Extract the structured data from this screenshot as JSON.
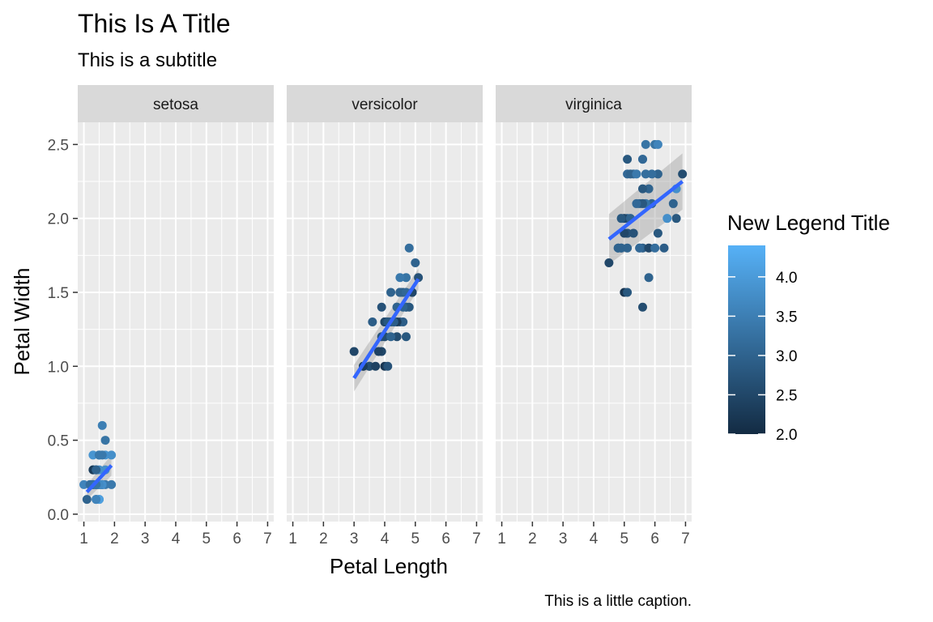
{
  "chart_data": {
    "type": "scatter",
    "title": "This Is A Title",
    "subtitle": "This is a subtitle",
    "caption": "This is a little caption.",
    "xlabel": "Petal Length",
    "ylabel": "Petal Width",
    "xlim": [
      0.8,
      7.2
    ],
    "ylim": [
      -0.05,
      2.65
    ],
    "x_ticks": [
      "1",
      "2",
      "3",
      "4",
      "5",
      "6",
      "7"
    ],
    "y_ticks": [
      "0.0",
      "0.5",
      "1.0",
      "1.5",
      "2.0",
      "2.5"
    ],
    "grid": true,
    "facet_by": "species",
    "legend": {
      "title": "New Legend Title",
      "placement": "right",
      "type": "colorbar",
      "min": 2.0,
      "max": 4.4,
      "ticks": [
        "2.0",
        "2.5",
        "3.0",
        "3.5",
        "4.0"
      ],
      "low_color": "#132B43",
      "high_color": "#56B1F7"
    },
    "smooth_line_color": "#3366FF",
    "smooth_band_color": "#999999",
    "facets": [
      {
        "name": "setosa",
        "fit": {
          "x": [
            1.1,
            1.9
          ],
          "y": [
            0.15,
            0.33
          ],
          "band": [
            0.05,
            0.07
          ]
        },
        "points": [
          {
            "x": 1.4,
            "y": 0.2,
            "c": 3.5
          },
          {
            "x": 1.4,
            "y": 0.2,
            "c": 3.0
          },
          {
            "x": 1.3,
            "y": 0.2,
            "c": 3.2
          },
          {
            "x": 1.5,
            "y": 0.2,
            "c": 3.1
          },
          {
            "x": 1.4,
            "y": 0.2,
            "c": 3.6
          },
          {
            "x": 1.7,
            "y": 0.4,
            "c": 3.9
          },
          {
            "x": 1.4,
            "y": 0.3,
            "c": 3.4
          },
          {
            "x": 1.5,
            "y": 0.2,
            "c": 3.4
          },
          {
            "x": 1.4,
            "y": 0.2,
            "c": 2.9
          },
          {
            "x": 1.5,
            "y": 0.1,
            "c": 3.1
          },
          {
            "x": 1.5,
            "y": 0.2,
            "c": 3.7
          },
          {
            "x": 1.6,
            "y": 0.2,
            "c": 3.4
          },
          {
            "x": 1.4,
            "y": 0.1,
            "c": 3.0
          },
          {
            "x": 1.1,
            "y": 0.1,
            "c": 3.0
          },
          {
            "x": 1.2,
            "y": 0.2,
            "c": 4.0
          },
          {
            "x": 1.5,
            "y": 0.4,
            "c": 4.4
          },
          {
            "x": 1.3,
            "y": 0.4,
            "c": 3.9
          },
          {
            "x": 1.4,
            "y": 0.3,
            "c": 3.5
          },
          {
            "x": 1.7,
            "y": 0.3,
            "c": 3.8
          },
          {
            "x": 1.5,
            "y": 0.3,
            "c": 3.8
          },
          {
            "x": 1.7,
            "y": 0.2,
            "c": 3.4
          },
          {
            "x": 1.5,
            "y": 0.4,
            "c": 3.7
          },
          {
            "x": 1.0,
            "y": 0.2,
            "c": 3.6
          },
          {
            "x": 1.7,
            "y": 0.5,
            "c": 3.3
          },
          {
            "x": 1.9,
            "y": 0.2,
            "c": 3.4
          },
          {
            "x": 1.6,
            "y": 0.2,
            "c": 3.0
          },
          {
            "x": 1.6,
            "y": 0.4,
            "c": 3.4
          },
          {
            "x": 1.5,
            "y": 0.2,
            "c": 3.5
          },
          {
            "x": 1.4,
            "y": 0.2,
            "c": 3.4
          },
          {
            "x": 1.6,
            "y": 0.2,
            "c": 3.2
          },
          {
            "x": 1.6,
            "y": 0.2,
            "c": 3.1
          },
          {
            "x": 1.5,
            "y": 0.4,
            "c": 3.4
          },
          {
            "x": 1.5,
            "y": 0.1,
            "c": 4.1
          },
          {
            "x": 1.4,
            "y": 0.2,
            "c": 4.2
          },
          {
            "x": 1.5,
            "y": 0.2,
            "c": 3.1
          },
          {
            "x": 1.2,
            "y": 0.2,
            "c": 3.2
          },
          {
            "x": 1.3,
            "y": 0.2,
            "c": 3.5
          },
          {
            "x": 1.4,
            "y": 0.1,
            "c": 3.6
          },
          {
            "x": 1.3,
            "y": 0.2,
            "c": 3.0
          },
          {
            "x": 1.5,
            "y": 0.2,
            "c": 3.4
          },
          {
            "x": 1.3,
            "y": 0.3,
            "c": 3.5
          },
          {
            "x": 1.3,
            "y": 0.3,
            "c": 2.3
          },
          {
            "x": 1.3,
            "y": 0.2,
            "c": 3.2
          },
          {
            "x": 1.6,
            "y": 0.6,
            "c": 3.5
          },
          {
            "x": 1.9,
            "y": 0.4,
            "c": 3.8
          },
          {
            "x": 1.4,
            "y": 0.3,
            "c": 3.0
          },
          {
            "x": 1.6,
            "y": 0.2,
            "c": 3.8
          },
          {
            "x": 1.4,
            "y": 0.2,
            "c": 3.2
          },
          {
            "x": 1.5,
            "y": 0.2,
            "c": 3.7
          },
          {
            "x": 1.4,
            "y": 0.2,
            "c": 3.3
          }
        ]
      },
      {
        "name": "versicolor",
        "fit": {
          "x": [
            3.0,
            5.1
          ],
          "y": [
            0.92,
            1.59
          ],
          "band": [
            0.09,
            0.07
          ]
        },
        "points": [
          {
            "x": 4.7,
            "y": 1.4,
            "c": 3.2
          },
          {
            "x": 4.5,
            "y": 1.5,
            "c": 3.2
          },
          {
            "x": 4.9,
            "y": 1.5,
            "c": 3.1
          },
          {
            "x": 4.0,
            "y": 1.3,
            "c": 2.3
          },
          {
            "x": 4.6,
            "y": 1.5,
            "c": 2.8
          },
          {
            "x": 4.5,
            "y": 1.3,
            "c": 2.8
          },
          {
            "x": 4.7,
            "y": 1.6,
            "c": 3.3
          },
          {
            "x": 3.3,
            "y": 1.0,
            "c": 2.4
          },
          {
            "x": 4.6,
            "y": 1.3,
            "c": 2.9
          },
          {
            "x": 3.9,
            "y": 1.4,
            "c": 2.7
          },
          {
            "x": 3.5,
            "y": 1.0,
            "c": 2.0
          },
          {
            "x": 4.2,
            "y": 1.5,
            "c": 3.0
          },
          {
            "x": 4.0,
            "y": 1.0,
            "c": 2.2
          },
          {
            "x": 4.7,
            "y": 1.4,
            "c": 2.9
          },
          {
            "x": 3.6,
            "y": 1.3,
            "c": 2.9
          },
          {
            "x": 4.4,
            "y": 1.4,
            "c": 3.1
          },
          {
            "x": 4.5,
            "y": 1.5,
            "c": 3.0
          },
          {
            "x": 4.1,
            "y": 1.0,
            "c": 2.7
          },
          {
            "x": 4.5,
            "y": 1.5,
            "c": 2.2
          },
          {
            "x": 3.9,
            "y": 1.1,
            "c": 2.5
          },
          {
            "x": 4.8,
            "y": 1.8,
            "c": 3.2
          },
          {
            "x": 4.0,
            "y": 1.3,
            "c": 2.8
          },
          {
            "x": 4.9,
            "y": 1.5,
            "c": 2.5
          },
          {
            "x": 4.7,
            "y": 1.2,
            "c": 2.8
          },
          {
            "x": 4.3,
            "y": 1.3,
            "c": 2.9
          },
          {
            "x": 4.4,
            "y": 1.4,
            "c": 3.0
          },
          {
            "x": 4.8,
            "y": 1.4,
            "c": 2.8
          },
          {
            "x": 5.0,
            "y": 1.7,
            "c": 3.0
          },
          {
            "x": 4.5,
            "y": 1.5,
            "c": 2.9
          },
          {
            "x": 3.5,
            "y": 1.0,
            "c": 2.6
          },
          {
            "x": 3.8,
            "y": 1.1,
            "c": 2.4
          },
          {
            "x": 3.7,
            "y": 1.0,
            "c": 2.4
          },
          {
            "x": 3.9,
            "y": 1.2,
            "c": 2.7
          },
          {
            "x": 5.1,
            "y": 1.6,
            "c": 2.7
          },
          {
            "x": 4.5,
            "y": 1.5,
            "c": 3.0
          },
          {
            "x": 4.5,
            "y": 1.6,
            "c": 3.4
          },
          {
            "x": 4.7,
            "y": 1.5,
            "c": 3.1
          },
          {
            "x": 4.4,
            "y": 1.3,
            "c": 2.3
          },
          {
            "x": 4.1,
            "y": 1.3,
            "c": 3.0
          },
          {
            "x": 4.0,
            "y": 1.3,
            "c": 2.5
          },
          {
            "x": 4.4,
            "y": 1.2,
            "c": 2.6
          },
          {
            "x": 4.6,
            "y": 1.4,
            "c": 3.0
          },
          {
            "x": 4.0,
            "y": 1.2,
            "c": 2.6
          },
          {
            "x": 3.3,
            "y": 1.0,
            "c": 2.3
          },
          {
            "x": 4.2,
            "y": 1.3,
            "c": 2.7
          },
          {
            "x": 4.2,
            "y": 1.2,
            "c": 3.0
          },
          {
            "x": 4.2,
            "y": 1.3,
            "c": 2.9
          },
          {
            "x": 4.3,
            "y": 1.3,
            "c": 2.9
          },
          {
            "x": 3.0,
            "y": 1.1,
            "c": 2.5
          },
          {
            "x": 4.1,
            "y": 1.3,
            "c": 2.8
          }
        ]
      },
      {
        "name": "virginica",
        "fit": {
          "x": [
            4.5,
            6.9
          ],
          "y": [
            1.86,
            2.25
          ],
          "band": [
            0.17,
            0.19
          ]
        },
        "points": [
          {
            "x": 6.0,
            "y": 2.5,
            "c": 3.3
          },
          {
            "x": 5.1,
            "y": 1.9,
            "c": 2.7
          },
          {
            "x": 5.9,
            "y": 2.1,
            "c": 3.0
          },
          {
            "x": 5.6,
            "y": 1.8,
            "c": 2.9
          },
          {
            "x": 5.8,
            "y": 2.2,
            "c": 3.0
          },
          {
            "x": 6.6,
            "y": 2.1,
            "c": 3.0
          },
          {
            "x": 4.5,
            "y": 1.7,
            "c": 2.5
          },
          {
            "x": 6.3,
            "y": 1.8,
            "c": 2.9
          },
          {
            "x": 5.8,
            "y": 1.8,
            "c": 2.5
          },
          {
            "x": 6.1,
            "y": 2.5,
            "c": 3.6
          },
          {
            "x": 5.1,
            "y": 2.0,
            "c": 3.2
          },
          {
            "x": 5.3,
            "y": 1.9,
            "c": 2.7
          },
          {
            "x": 5.5,
            "y": 2.1,
            "c": 3.0
          },
          {
            "x": 5.0,
            "y": 2.0,
            "c": 2.5
          },
          {
            "x": 5.1,
            "y": 2.4,
            "c": 2.8
          },
          {
            "x": 5.3,
            "y": 2.3,
            "c": 3.2
          },
          {
            "x": 5.5,
            "y": 1.8,
            "c": 3.0
          },
          {
            "x": 6.7,
            "y": 2.2,
            "c": 3.8
          },
          {
            "x": 6.9,
            "y": 2.3,
            "c": 2.6
          },
          {
            "x": 5.0,
            "y": 1.5,
            "c": 2.2
          },
          {
            "x": 5.7,
            "y": 2.3,
            "c": 3.2
          },
          {
            "x": 4.9,
            "y": 2.0,
            "c": 2.8
          },
          {
            "x": 6.7,
            "y": 2.0,
            "c": 2.8
          },
          {
            "x": 4.9,
            "y": 1.8,
            "c": 2.7
          },
          {
            "x": 5.7,
            "y": 2.1,
            "c": 3.3
          },
          {
            "x": 6.0,
            "y": 1.8,
            "c": 3.2
          },
          {
            "x": 4.8,
            "y": 1.8,
            "c": 2.8
          },
          {
            "x": 4.9,
            "y": 1.8,
            "c": 3.0
          },
          {
            "x": 5.6,
            "y": 2.1,
            "c": 2.8
          },
          {
            "x": 5.8,
            "y": 1.6,
            "c": 3.0
          },
          {
            "x": 6.1,
            "y": 1.9,
            "c": 2.8
          },
          {
            "x": 6.4,
            "y": 2.0,
            "c": 3.8
          },
          {
            "x": 5.6,
            "y": 2.2,
            "c": 2.8
          },
          {
            "x": 5.1,
            "y": 1.5,
            "c": 2.8
          },
          {
            "x": 5.6,
            "y": 1.4,
            "c": 2.6
          },
          {
            "x": 6.1,
            "y": 2.3,
            "c": 3.0
          },
          {
            "x": 5.6,
            "y": 2.4,
            "c": 3.4
          },
          {
            "x": 5.5,
            "y": 1.8,
            "c": 3.1
          },
          {
            "x": 4.8,
            "y": 1.8,
            "c": 3.0
          },
          {
            "x": 5.4,
            "y": 2.1,
            "c": 3.1
          },
          {
            "x": 5.6,
            "y": 2.4,
            "c": 3.1
          },
          {
            "x": 5.1,
            "y": 2.3,
            "c": 3.1
          },
          {
            "x": 5.1,
            "y": 1.9,
            "c": 2.7
          },
          {
            "x": 5.9,
            "y": 2.3,
            "c": 3.2
          },
          {
            "x": 5.7,
            "y": 2.5,
            "c": 3.3
          },
          {
            "x": 5.2,
            "y": 2.3,
            "c": 3.0
          },
          {
            "x": 5.0,
            "y": 1.9,
            "c": 2.5
          },
          {
            "x": 5.2,
            "y": 2.0,
            "c": 3.0
          },
          {
            "x": 5.4,
            "y": 2.3,
            "c": 3.4
          },
          {
            "x": 5.1,
            "y": 1.8,
            "c": 3.0
          }
        ]
      }
    ]
  }
}
